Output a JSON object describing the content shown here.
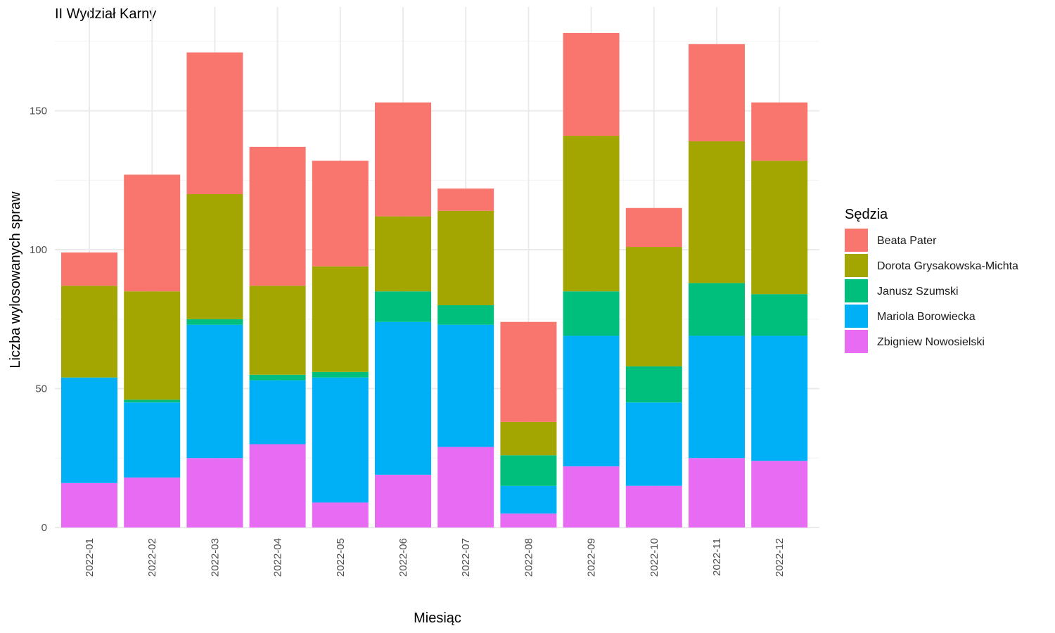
{
  "chart_data": {
    "type": "bar",
    "stacked": true,
    "title": "II Wydział Karny",
    "xlabel": "Miesiąc",
    "ylabel": "Liczba wylosowanych spraw",
    "ylim": [
      0,
      180
    ],
    "yticks": [
      0,
      50,
      100,
      150
    ],
    "grid": true,
    "legend_position": "right",
    "legend_title": "Sędzia",
    "categories": [
      "2022-01",
      "2022-02",
      "2022-03",
      "2022-04",
      "2022-05",
      "2022-06",
      "2022-07",
      "2022-08",
      "2022-09",
      "2022-10",
      "2022-11",
      "2022-12"
    ],
    "series": [
      {
        "name": "Zbigniew Nowosielski",
        "color": "#E76BF3",
        "values": [
          16,
          18,
          25,
          30,
          9,
          19,
          29,
          5,
          22,
          15,
          25,
          24
        ]
      },
      {
        "name": "Mariola Borowiecka",
        "color": "#00B0F6",
        "values": [
          38,
          27,
          48,
          23,
          45,
          55,
          44,
          10,
          47,
          30,
          44,
          45
        ]
      },
      {
        "name": "Janusz Szumski",
        "color": "#00BF7D",
        "values": [
          0,
          1,
          2,
          2,
          2,
          11,
          7,
          11,
          16,
          13,
          19,
          15
        ]
      },
      {
        "name": "Dorota Grysakowska-Michta",
        "color": "#A3A500",
        "values": [
          33,
          39,
          45,
          32,
          38,
          27,
          34,
          12,
          56,
          43,
          51,
          48
        ]
      },
      {
        "name": "Beata Pater",
        "color": "#F8766D",
        "values": [
          12,
          42,
          51,
          50,
          38,
          41,
          8,
          36,
          37,
          14,
          35,
          21
        ]
      }
    ],
    "legend_order": [
      "Beata Pater",
      "Dorota Grysakowska-Michta",
      "Janusz Szumski",
      "Mariola Borowiecka",
      "Zbigniew Nowosielski"
    ]
  }
}
